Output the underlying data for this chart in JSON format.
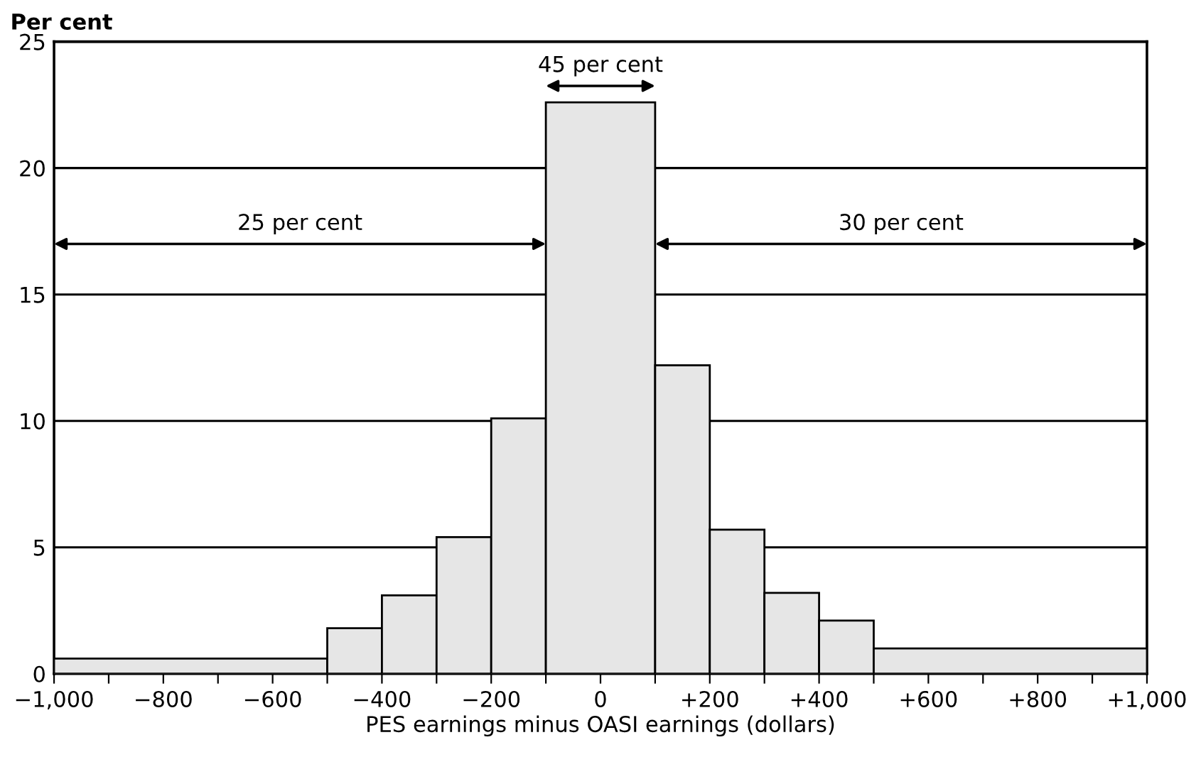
{
  "chart_data": {
    "type": "histogram",
    "ylabel": "Per cent",
    "xlabel": "PES earnings minus OASI earnings (dollars)",
    "bins": [
      -1000,
      -500,
      -400,
      -300,
      -200,
      -100,
      100,
      200,
      300,
      400,
      500,
      1000
    ],
    "values": [
      0.6,
      1.8,
      3.1,
      5.4,
      10.1,
      22.6,
      12.2,
      5.7,
      3.2,
      2.1,
      1.0
    ],
    "color": "#e6e6e6",
    "xlim": [
      -1000,
      1000
    ],
    "ylim": [
      0,
      25
    ],
    "xticks": [
      {
        "value": -1000,
        "label": "−1,000"
      },
      {
        "value": -900,
        "label": null
      },
      {
        "value": -800,
        "label": "−800"
      },
      {
        "value": -700,
        "label": null
      },
      {
        "value": -600,
        "label": "−600"
      },
      {
        "value": -500,
        "label": null
      },
      {
        "value": -400,
        "label": "−400"
      },
      {
        "value": -300,
        "label": null
      },
      {
        "value": -200,
        "label": "−200"
      },
      {
        "value": -100,
        "label": null
      },
      0,
      {
        "value": 100,
        "label": null
      },
      {
        "value": 200,
        "label": "+200"
      },
      {
        "value": 300,
        "label": null
      },
      {
        "value": 400,
        "label": "+400"
      },
      {
        "value": 500,
        "label": null
      },
      {
        "value": 600,
        "label": "+600"
      },
      {
        "value": 700,
        "label": null
      },
      {
        "value": 800,
        "label": "+800"
      },
      {
        "value": 900,
        "label": null
      },
      {
        "value": 1000,
        "label": "+1,000"
      }
    ],
    "yticks": [
      0,
      5,
      10,
      15,
      20,
      25
    ],
    "grid": "y",
    "annotations": [
      "45 per cent",
      "25 per cent",
      "30 per cent"
    ]
  }
}
